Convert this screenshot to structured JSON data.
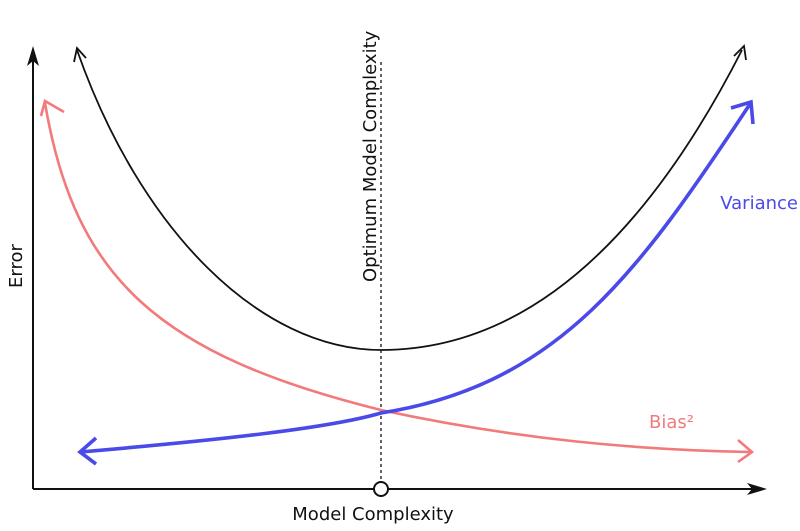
{
  "axes": {
    "x_label": "Model Complexity",
    "y_label": "Error"
  },
  "annotation": {
    "optimum_label": "Optimum Model Complexity"
  },
  "curves": {
    "total_error": {
      "color": "#111111"
    },
    "variance": {
      "label": "Variance",
      "color": "#4a4ae8"
    },
    "bias": {
      "label": "Bias²",
      "color": "#f27a7a"
    }
  }
}
